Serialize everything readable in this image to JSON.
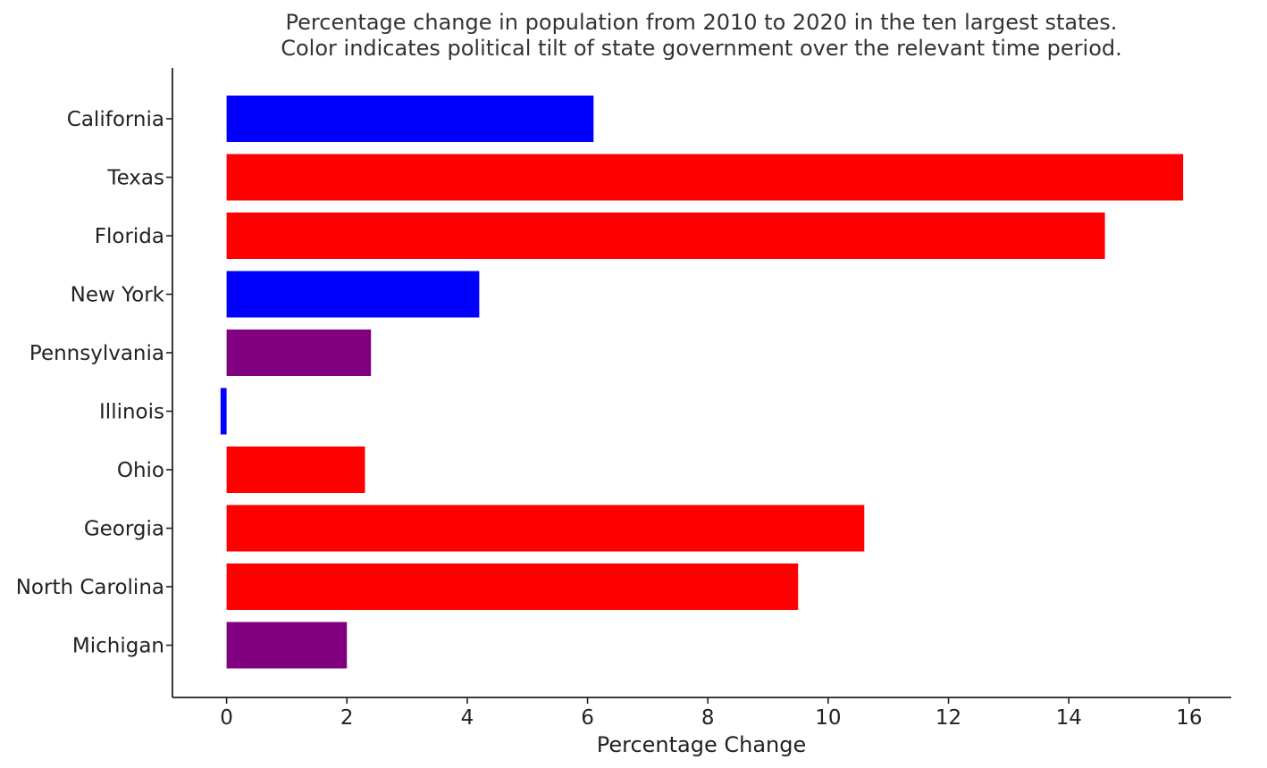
{
  "chart_data": {
    "type": "bar",
    "orientation": "horizontal",
    "title": "Percentage change in population from 2010 to 2020 in the ten largest states.",
    "subtitle": "Color indicates political tilt of state government over the relevant time period.",
    "xlabel": "Percentage Change",
    "ylabel": "",
    "xlim": [
      -0.9,
      16.7
    ],
    "xticks": [
      0,
      2,
      4,
      6,
      8,
      10,
      12,
      14,
      16
    ],
    "grid": false,
    "legend": "none",
    "categories": [
      "California",
      "Texas",
      "Florida",
      "New York",
      "Pennsylvania",
      "Illinois",
      "Ohio",
      "Georgia",
      "North Carolina",
      "Michigan"
    ],
    "values": [
      6.1,
      15.9,
      14.6,
      4.2,
      2.4,
      -0.1,
      2.3,
      10.6,
      9.5,
      2.0
    ],
    "bar_colors": [
      "#0000ff",
      "#ff0000",
      "#ff0000",
      "#0000ff",
      "#800080",
      "#0000ff",
      "#ff0000",
      "#ff0000",
      "#ff0000",
      "#800080"
    ]
  }
}
